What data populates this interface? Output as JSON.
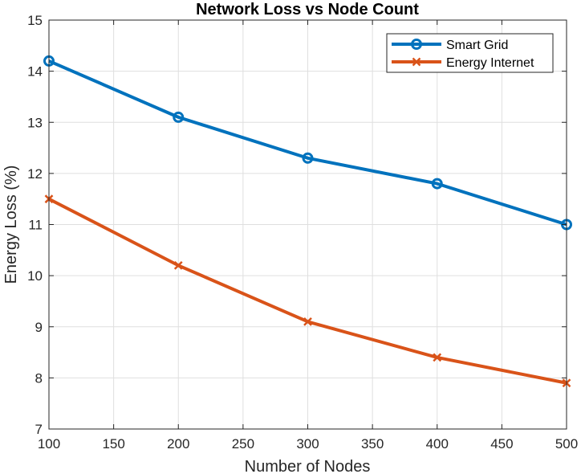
{
  "chart_data": {
    "type": "line",
    "title": "Network Loss vs Node Count",
    "xlabel": "Number of Nodes",
    "ylabel": "Energy Loss (%)",
    "xlim": [
      100,
      500
    ],
    "ylim": [
      7,
      15
    ],
    "xticks": [
      100,
      150,
      200,
      250,
      300,
      350,
      400,
      450,
      500
    ],
    "yticks": [
      7,
      8,
      9,
      10,
      11,
      12,
      13,
      14,
      15
    ],
    "grid": true,
    "legend_position": "top-right",
    "x": [
      100,
      200,
      300,
      400,
      500
    ],
    "series": [
      {
        "name": "Smart Grid",
        "values": [
          14.2,
          13.1,
          12.3,
          11.8,
          11.0
        ],
        "color": "#0072BD",
        "marker": "circle"
      },
      {
        "name": "Energy Internet",
        "values": [
          11.5,
          10.2,
          9.1,
          8.4,
          7.9
        ],
        "color": "#D95319",
        "marker": "x"
      }
    ]
  }
}
